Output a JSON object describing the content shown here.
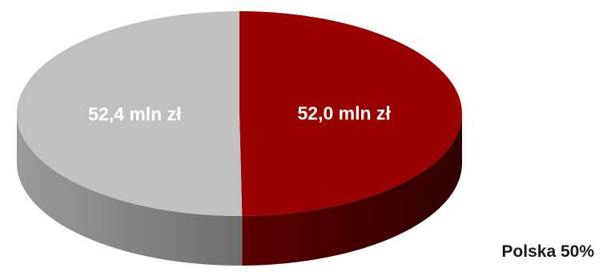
{
  "chart_data": {
    "type": "pie",
    "style": "3d",
    "slices": [
      {
        "label": "52,0 mln zł",
        "value": 52.0,
        "color": "#990000",
        "side_color": "#4d0000"
      },
      {
        "label": "52,4 mln zł",
        "value": 52.4,
        "color": "#c0c0c0",
        "side_color": "#7a7a7a"
      }
    ],
    "annotations": [
      "Polska 50%"
    ],
    "legend": "none"
  }
}
